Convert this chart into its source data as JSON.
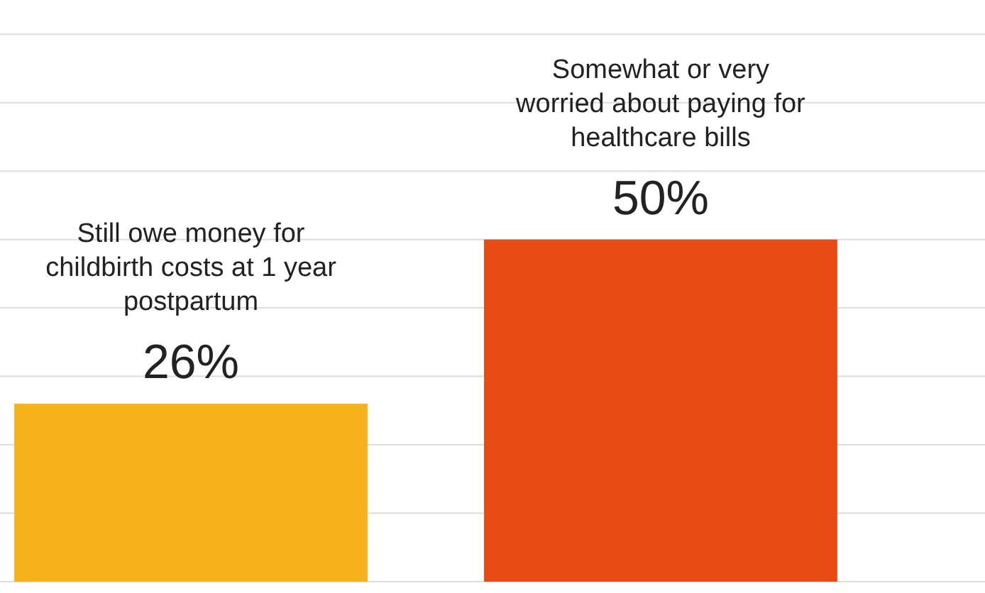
{
  "chart_data": {
    "type": "bar",
    "categories": [
      "Still owe money for childbirth costs at 1 year postpartum",
      "Somewhat or very worried about paying for healthcare bills"
    ],
    "values": [
      26,
      50
    ],
    "colors": [
      "#f7b11a",
      "#e84a14"
    ],
    "value_labels": [
      "26%",
      "50%"
    ],
    "ylim": [
      0,
      85
    ],
    "yticks": [
      {
        "value": 0,
        "label": null
      },
      {
        "value": 10,
        "label": null
      },
      {
        "value": 20,
        "label": null
      },
      {
        "value": 30,
        "label": null
      },
      {
        "value": 40,
        "label": null
      },
      {
        "value": 50,
        "label": null
      },
      {
        "value": 60,
        "label": null
      },
      {
        "value": 70,
        "label": null
      },
      {
        "value": 80,
        "label": null
      }
    ],
    "grid": true,
    "tick_labels": "x"
  }
}
